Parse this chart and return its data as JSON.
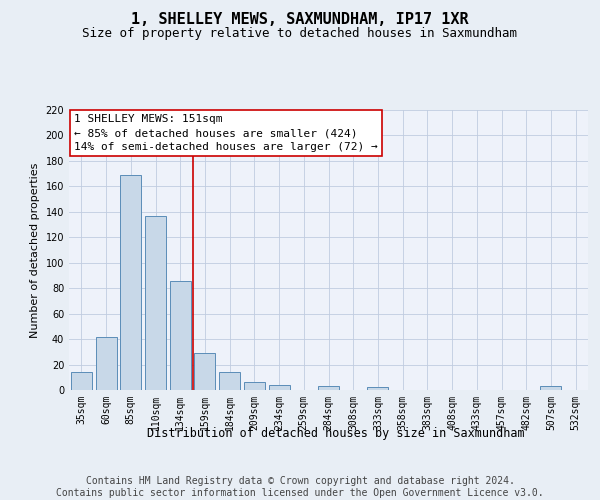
{
  "title": "1, SHELLEY MEWS, SAXMUNDHAM, IP17 1XR",
  "subtitle": "Size of property relative to detached houses in Saxmundham",
  "xlabel": "Distribution of detached houses by size in Saxmundham",
  "ylabel": "Number of detached properties",
  "categories": [
    "35sqm",
    "60sqm",
    "85sqm",
    "110sqm",
    "134sqm",
    "159sqm",
    "184sqm",
    "209sqm",
    "234sqm",
    "259sqm",
    "284sqm",
    "308sqm",
    "333sqm",
    "358sqm",
    "383sqm",
    "408sqm",
    "433sqm",
    "457sqm",
    "482sqm",
    "507sqm",
    "532sqm"
  ],
  "values": [
    14,
    42,
    169,
    137,
    86,
    29,
    14,
    6,
    4,
    0,
    3,
    0,
    2,
    0,
    0,
    0,
    0,
    0,
    0,
    3,
    0
  ],
  "bar_color": "#c8d8e8",
  "bar_edge_color": "#5b8db8",
  "bar_width": 0.85,
  "ylim": [
    0,
    220
  ],
  "yticks": [
    0,
    20,
    40,
    60,
    80,
    100,
    120,
    140,
    160,
    180,
    200,
    220
  ],
  "vline_x_index": 5,
  "vline_color": "#cc0000",
  "annotation_line1": "1 SHELLEY MEWS: 151sqm",
  "annotation_line2": "← 85% of detached houses are smaller (424)",
  "annotation_line3": "14% of semi-detached houses are larger (72) →",
  "annotation_box_color": "#ffffff",
  "annotation_box_edge_color": "#cc0000",
  "footnote": "Contains HM Land Registry data © Crown copyright and database right 2024.\nContains public sector information licensed under the Open Government Licence v3.0.",
  "background_color": "#e8eef5",
  "plot_background": "#eef2fa",
  "title_fontsize": 11,
  "subtitle_fontsize": 9,
  "xlabel_fontsize": 8.5,
  "ylabel_fontsize": 8,
  "footnote_fontsize": 7,
  "annotation_fontsize": 8,
  "tick_fontsize": 7
}
